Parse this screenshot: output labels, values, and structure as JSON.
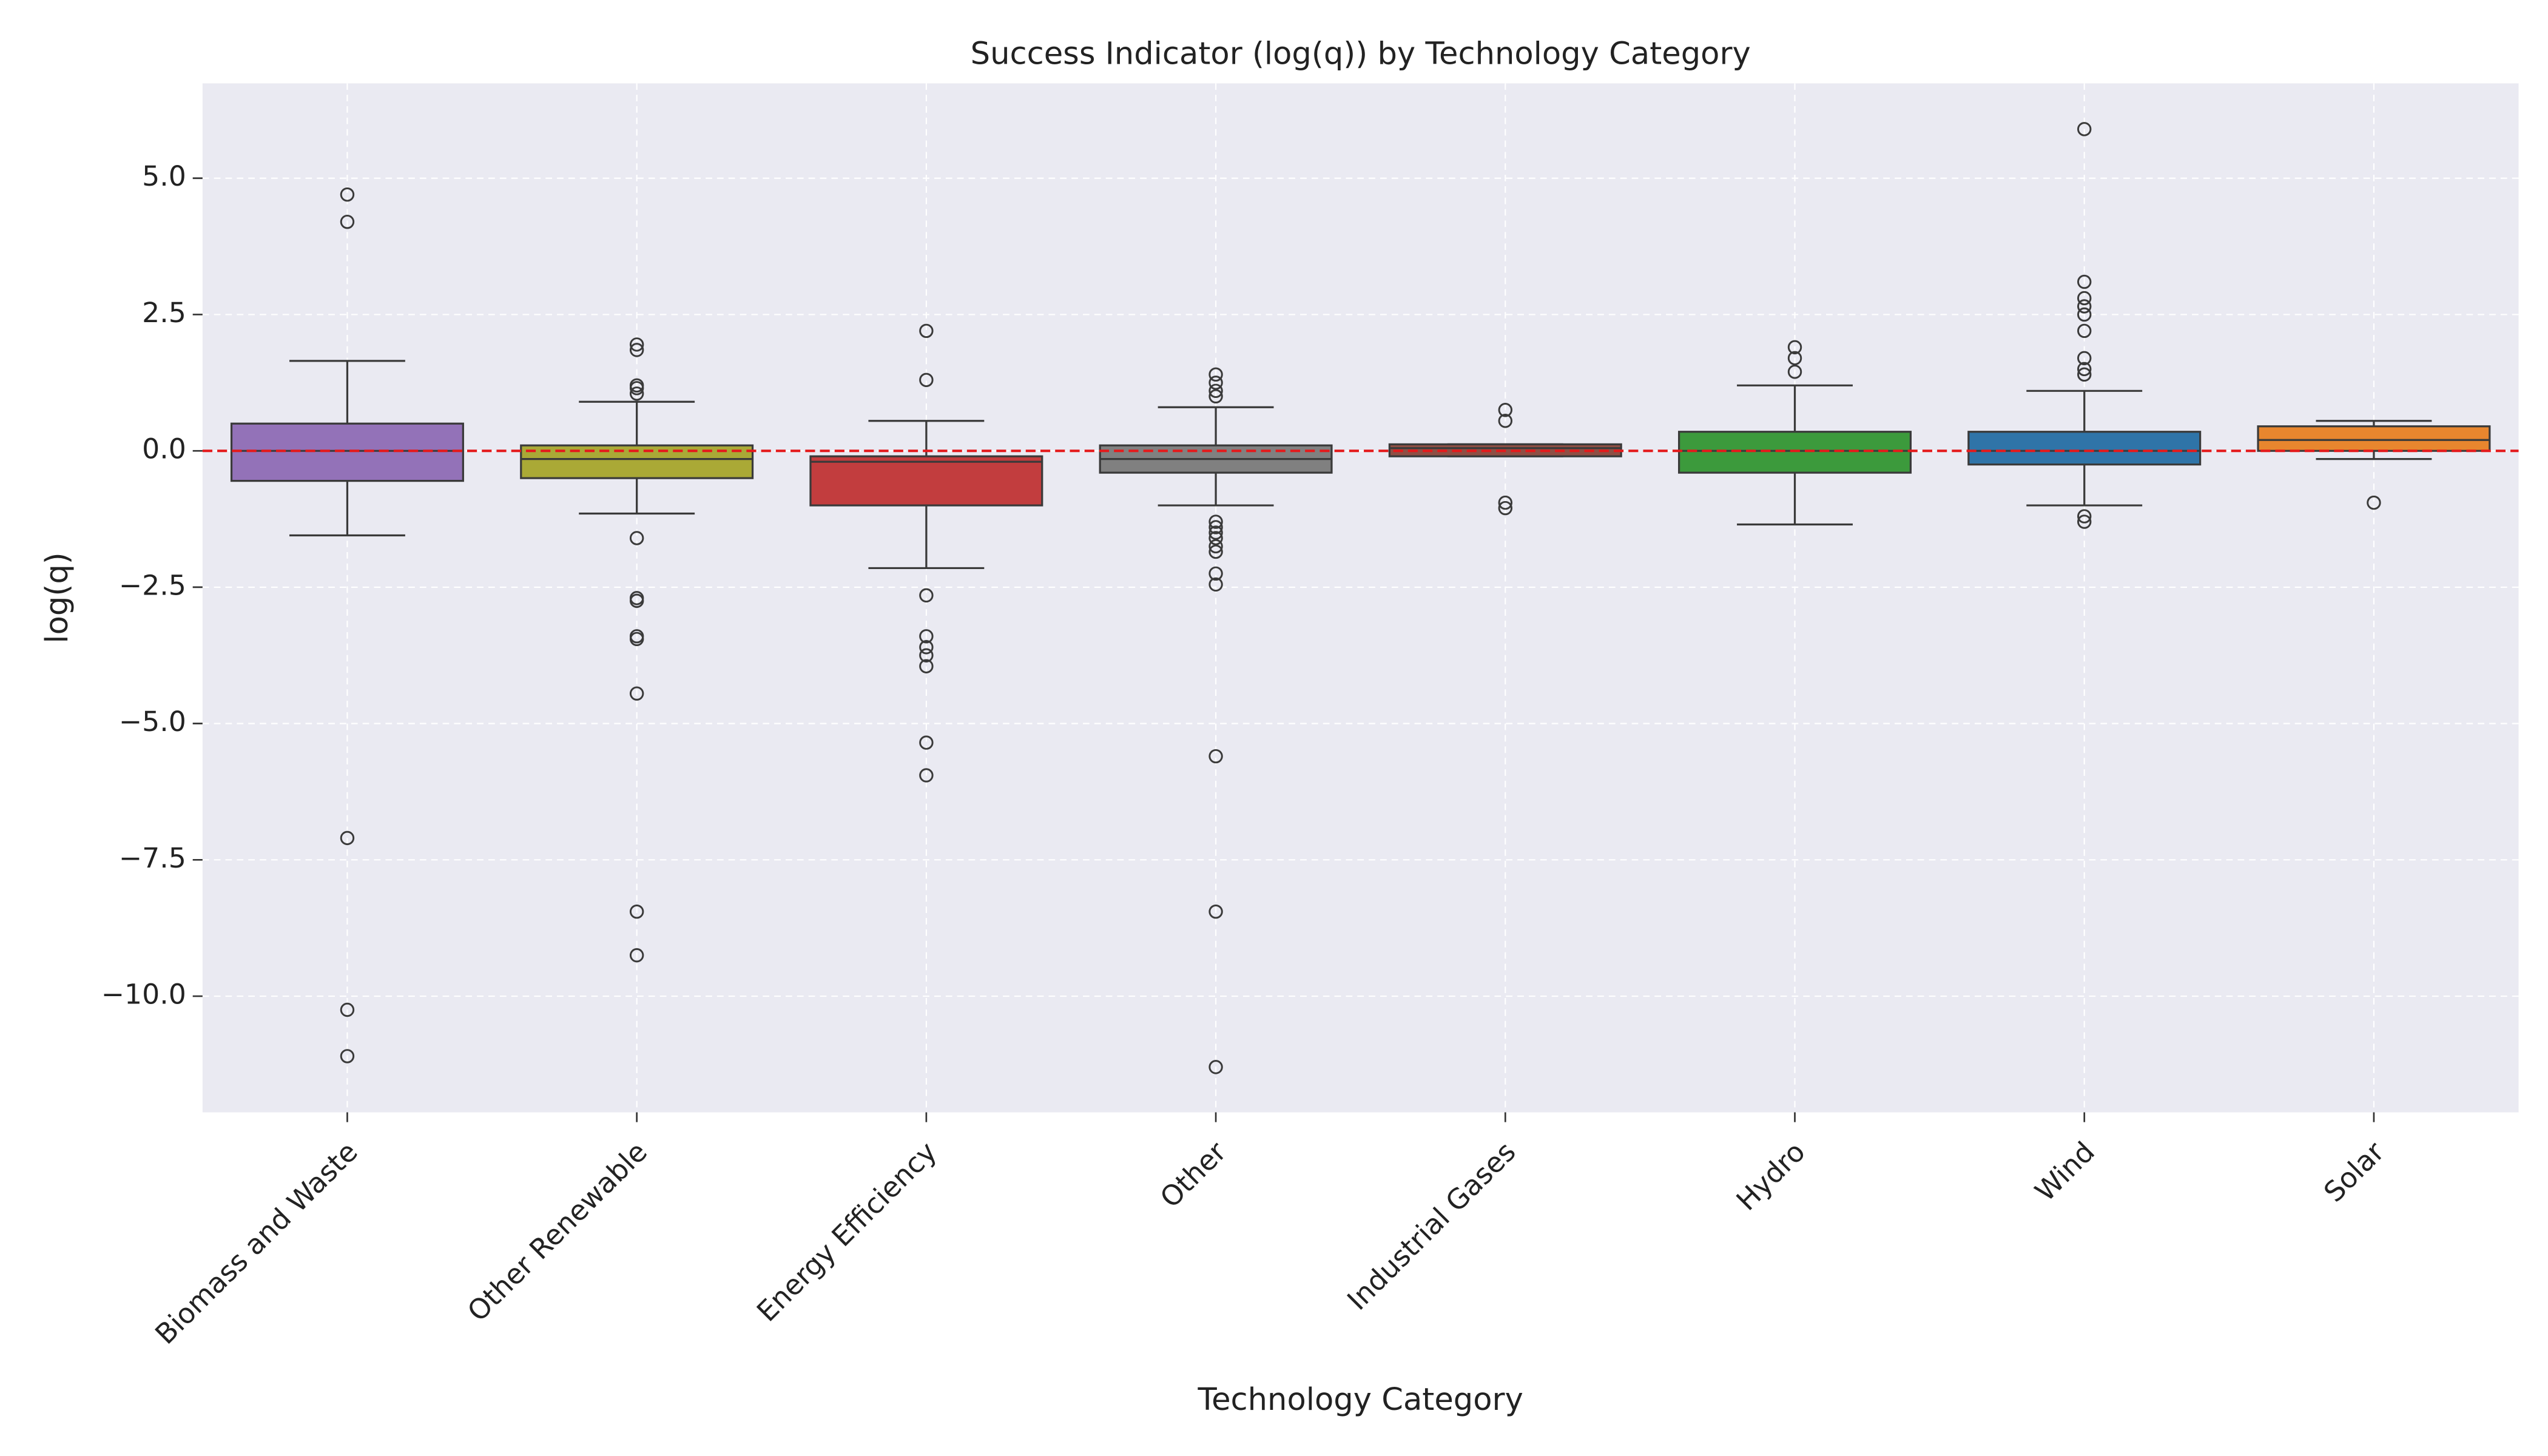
{
  "chart_data": {
    "type": "box",
    "title": "Success Indicator (log(q)) by Technology Category",
    "xlabel": "Technology Category",
    "ylabel": "log(q)",
    "categories": [
      "Biomass and Waste",
      "Other Renewable",
      "Energy Efficiency",
      "Other",
      "Industrial Gases",
      "Hydro",
      "Wind",
      "Solar"
    ],
    "colors": [
      "#9372b8",
      "#aaa936",
      "#c23d3e",
      "#808080",
      "#8e4f45",
      "#3c9a3c",
      "#2f74a8",
      "#e8862e"
    ],
    "boxes": [
      {
        "whislo": -1.55,
        "q1": -0.55,
        "median": 0,
        "q3": 0.5,
        "whishi": 1.65,
        "fliers": [
          4.7,
          4.2,
          -7.1,
          -10.25,
          -11.1
        ]
      },
      {
        "whislo": -1.15,
        "q1": -0.5,
        "median": -0.15,
        "q3": 0.1,
        "whishi": 0.9,
        "fliers": [
          1.95,
          1.85,
          1.2,
          1.15,
          1.05,
          -1.6,
          -2.7,
          -2.75,
          -3.4,
          -3.45,
          -4.45,
          -8.45,
          -9.25
        ]
      },
      {
        "whislo": -2.15,
        "q1": -1.0,
        "median": -0.2,
        "q3": -0.1,
        "whishi": 0.55,
        "fliers": [
          2.2,
          1.3,
          -2.65,
          -3.4,
          -3.6,
          -3.75,
          -3.95,
          -5.35,
          -5.95
        ]
      },
      {
        "whislo": -1.0,
        "q1": -0.4,
        "median": -0.15,
        "q3": 0.1,
        "whishi": 0.8,
        "fliers": [
          1.4,
          1.25,
          1.1,
          1.0,
          -1.3,
          -1.4,
          -1.5,
          -1.6,
          -1.75,
          -1.85,
          -2.25,
          -2.45,
          -5.6,
          -8.45,
          -11.3
        ]
      },
      {
        "whislo": -0.1,
        "q1": -0.1,
        "median": 0.05,
        "q3": 0.12,
        "whishi": 0.12,
        "fliers": [
          0.75,
          0.55,
          -0.95,
          -1.05
        ]
      },
      {
        "whislo": -1.35,
        "q1": -0.4,
        "median": 0,
        "q3": 0.35,
        "whishi": 1.2,
        "fliers": [
          1.9,
          1.7,
          1.45
        ]
      },
      {
        "whislo": -1.0,
        "q1": -0.25,
        "median": 0,
        "q3": 0.35,
        "whishi": 1.1,
        "fliers": [
          5.9,
          3.1,
          2.8,
          2.65,
          2.5,
          2.2,
          1.7,
          1.5,
          1.4,
          -1.2,
          -1.3
        ]
      },
      {
        "whislo": -0.15,
        "q1": 0.0,
        "median": 0.2,
        "q3": 0.45,
        "whishi": 0.55,
        "fliers": [
          -0.95
        ]
      }
    ],
    "hline": 0,
    "hline_color": "#e41a1c",
    "ylim": [
      -12.13,
      6.74
    ],
    "yticks": [
      {
        "value": 5,
        "label": "5.0"
      },
      {
        "value": 2.5,
        "label": "2.5"
      },
      {
        "value": 0,
        "label": "0.0"
      },
      {
        "value": -2.5,
        "label": "−2.5"
      },
      {
        "value": -5,
        "label": "−5.0"
      },
      {
        "value": -7.5,
        "label": "−7.5"
      },
      {
        "value": -10,
        "label": "−10.0"
      }
    ],
    "grid": true
  }
}
